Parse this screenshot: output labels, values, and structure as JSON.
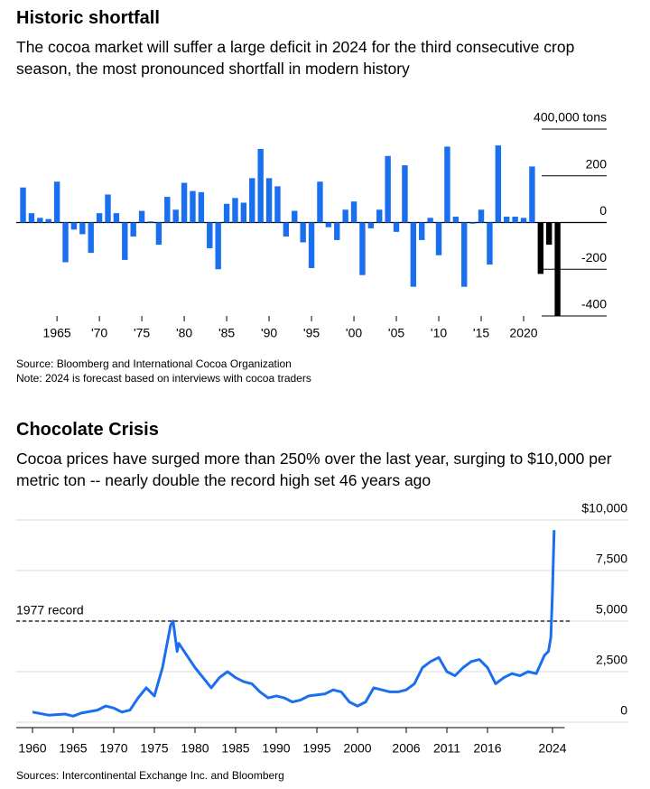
{
  "chart_data": [
    {
      "type": "bar",
      "title": "Historic shortfall",
      "subtitle": "The cocoa market will suffer a large deficit in 2024 for the third consecutive crop season, the most pronounced shortfall in modern history",
      "source": "Source: Bloomberg and International Cocoa Organization",
      "note": "Note: 2024 is forecast based on interviews with cocoa traders",
      "x": [
        1961,
        1962,
        1963,
        1964,
        1965,
        1966,
        1967,
        1968,
        1969,
        1970,
        1971,
        1972,
        1973,
        1974,
        1975,
        1976,
        1977,
        1978,
        1979,
        1980,
        1981,
        1982,
        1983,
        1984,
        1985,
        1986,
        1987,
        1988,
        1989,
        1990,
        1991,
        1992,
        1993,
        1994,
        1995,
        1996,
        1997,
        1998,
        1999,
        2000,
        2001,
        2002,
        2003,
        2004,
        2005,
        2006,
        2007,
        2008,
        2009,
        2010,
        2011,
        2012,
        2013,
        2014,
        2015,
        2016,
        2017,
        2018,
        2019,
        2020,
        2021,
        2022,
        2023,
        2024
      ],
      "values": [
        150,
        40,
        20,
        15,
        175,
        -170,
        -30,
        -50,
        -130,
        40,
        120,
        40,
        -160,
        -60,
        50,
        5,
        -95,
        110,
        55,
        170,
        135,
        130,
        -110,
        -200,
        80,
        105,
        85,
        190,
        315,
        190,
        155,
        -60,
        50,
        -85,
        -195,
        175,
        -20,
        -75,
        55,
        90,
        -225,
        -25,
        55,
        285,
        -40,
        245,
        -275,
        -75,
        20,
        -140,
        325,
        25,
        -275,
        -5,
        55,
        -180,
        330,
        25,
        25,
        20,
        240,
        -220,
        -95,
        -400
      ],
      "colors": [
        "#1a6fef",
        "#1a6fef",
        "#1a6fef",
        "#1a6fef",
        "#1a6fef",
        "#1a6fef",
        "#1a6fef",
        "#1a6fef",
        "#1a6fef",
        "#1a6fef",
        "#1a6fef",
        "#1a6fef",
        "#1a6fef",
        "#1a6fef",
        "#1a6fef",
        "#1a6fef",
        "#1a6fef",
        "#1a6fef",
        "#1a6fef",
        "#1a6fef",
        "#1a6fef",
        "#1a6fef",
        "#1a6fef",
        "#1a6fef",
        "#1a6fef",
        "#1a6fef",
        "#1a6fef",
        "#1a6fef",
        "#1a6fef",
        "#1a6fef",
        "#1a6fef",
        "#1a6fef",
        "#1a6fef",
        "#1a6fef",
        "#1a6fef",
        "#1a6fef",
        "#1a6fef",
        "#1a6fef",
        "#1a6fef",
        "#1a6fef",
        "#1a6fef",
        "#1a6fef",
        "#1a6fef",
        "#1a6fef",
        "#1a6fef",
        "#1a6fef",
        "#1a6fef",
        "#1a6fef",
        "#1a6fef",
        "#1a6fef",
        "#1a6fef",
        "#1a6fef",
        "#1a6fef",
        "#1a6fef",
        "#1a6fef",
        "#1a6fef",
        "#1a6fef",
        "#1a6fef",
        "#1a6fef",
        "#1a6fef",
        "#1a6fef",
        "#000000",
        "#000000",
        "#000000"
      ],
      "xlim": [
        1960.2,
        2025
      ],
      "xticks": [
        1965,
        {
          "value": 1970,
          "label": "'70"
        },
        {
          "value": 1975,
          "label": "'75"
        },
        {
          "value": 1980,
          "label": "'80"
        },
        {
          "value": 1985,
          "label": "'85"
        },
        {
          "value": 1990,
          "label": "'90"
        },
        {
          "value": 1995,
          "label": "'95"
        },
        {
          "value": 2000,
          "label": "'00"
        },
        {
          "value": 2005,
          "label": "'05"
        },
        {
          "value": 2010,
          "label": "'10"
        },
        {
          "value": 2015,
          "label": "'15"
        },
        2020
      ],
      "ylim": [
        -400,
        400
      ],
      "yticks": [
        {
          "value": 400,
          "label": "400,000 tons"
        },
        200,
        0,
        -200,
        -400
      ],
      "grid": true
    },
    {
      "type": "line",
      "title": "Chocolate Crisis",
      "subtitle": "Cocoa prices have surged more than 250% over the last year, surging to $10,000 per metric ton -- nearly double the record high set 46 years ago",
      "source": "Sources: Intercontinental Exchange Inc. and Bloomberg",
      "color": "#1a6fef",
      "x": [
        1960,
        1962,
        1964,
        1965,
        1966,
        1968,
        1969,
        1970,
        1971,
        1972,
        1973,
        1974,
        1975,
        1976,
        1977,
        1977.3,
        1977.8,
        1978,
        1979,
        1980,
        1981,
        1982,
        1983,
        1984,
        1985,
        1986,
        1987,
        1988,
        1989,
        1990,
        1991,
        1992,
        1993,
        1994,
        1995,
        1996,
        1997,
        1998,
        1999,
        2000,
        2001,
        2002,
        2003,
        2004,
        2005,
        2006,
        2007,
        2008,
        2009,
        2010,
        2011,
        2012,
        2013,
        2014,
        2015,
        2016,
        2017,
        2018,
        2019,
        2020,
        2021,
        2022,
        2023,
        2023.5,
        2023.8,
        2024,
        2024.2
      ],
      "values": [
        500,
        350,
        400,
        300,
        450,
        600,
        800,
        700,
        500,
        600,
        1200,
        1700,
        1300,
        2700,
        4800,
        5000,
        3500,
        3900,
        3300,
        2700,
        2200,
        1700,
        2200,
        2500,
        2200,
        2000,
        1900,
        1500,
        1200,
        1300,
        1200,
        1000,
        1100,
        1300,
        1350,
        1400,
        1600,
        1500,
        1000,
        800,
        1000,
        1700,
        1600,
        1500,
        1500,
        1600,
        1900,
        2700,
        3000,
        3200,
        2500,
        2300,
        2700,
        3000,
        3100,
        2700,
        1900,
        2200,
        2400,
        2300,
        2500,
        2400,
        3300,
        3500,
        4200,
        6500,
        9500
      ],
      "xlim": [
        1958,
        2025.5
      ],
      "xticks": [
        1960,
        1965,
        1970,
        1975,
        1980,
        1985,
        1990,
        1995,
        2000,
        2006,
        2011,
        2016,
        2024
      ],
      "ylim": [
        0,
        10000
      ],
      "yticks": [
        {
          "value": 10000,
          "label": "$10,000"
        },
        {
          "value": 7500,
          "label": "7,500"
        },
        {
          "value": 5000,
          "label": "5,000"
        },
        {
          "value": 2500,
          "label": "2,500"
        },
        0
      ],
      "reference": {
        "value": 5000,
        "label": "1977 record"
      },
      "grid": true
    }
  ]
}
